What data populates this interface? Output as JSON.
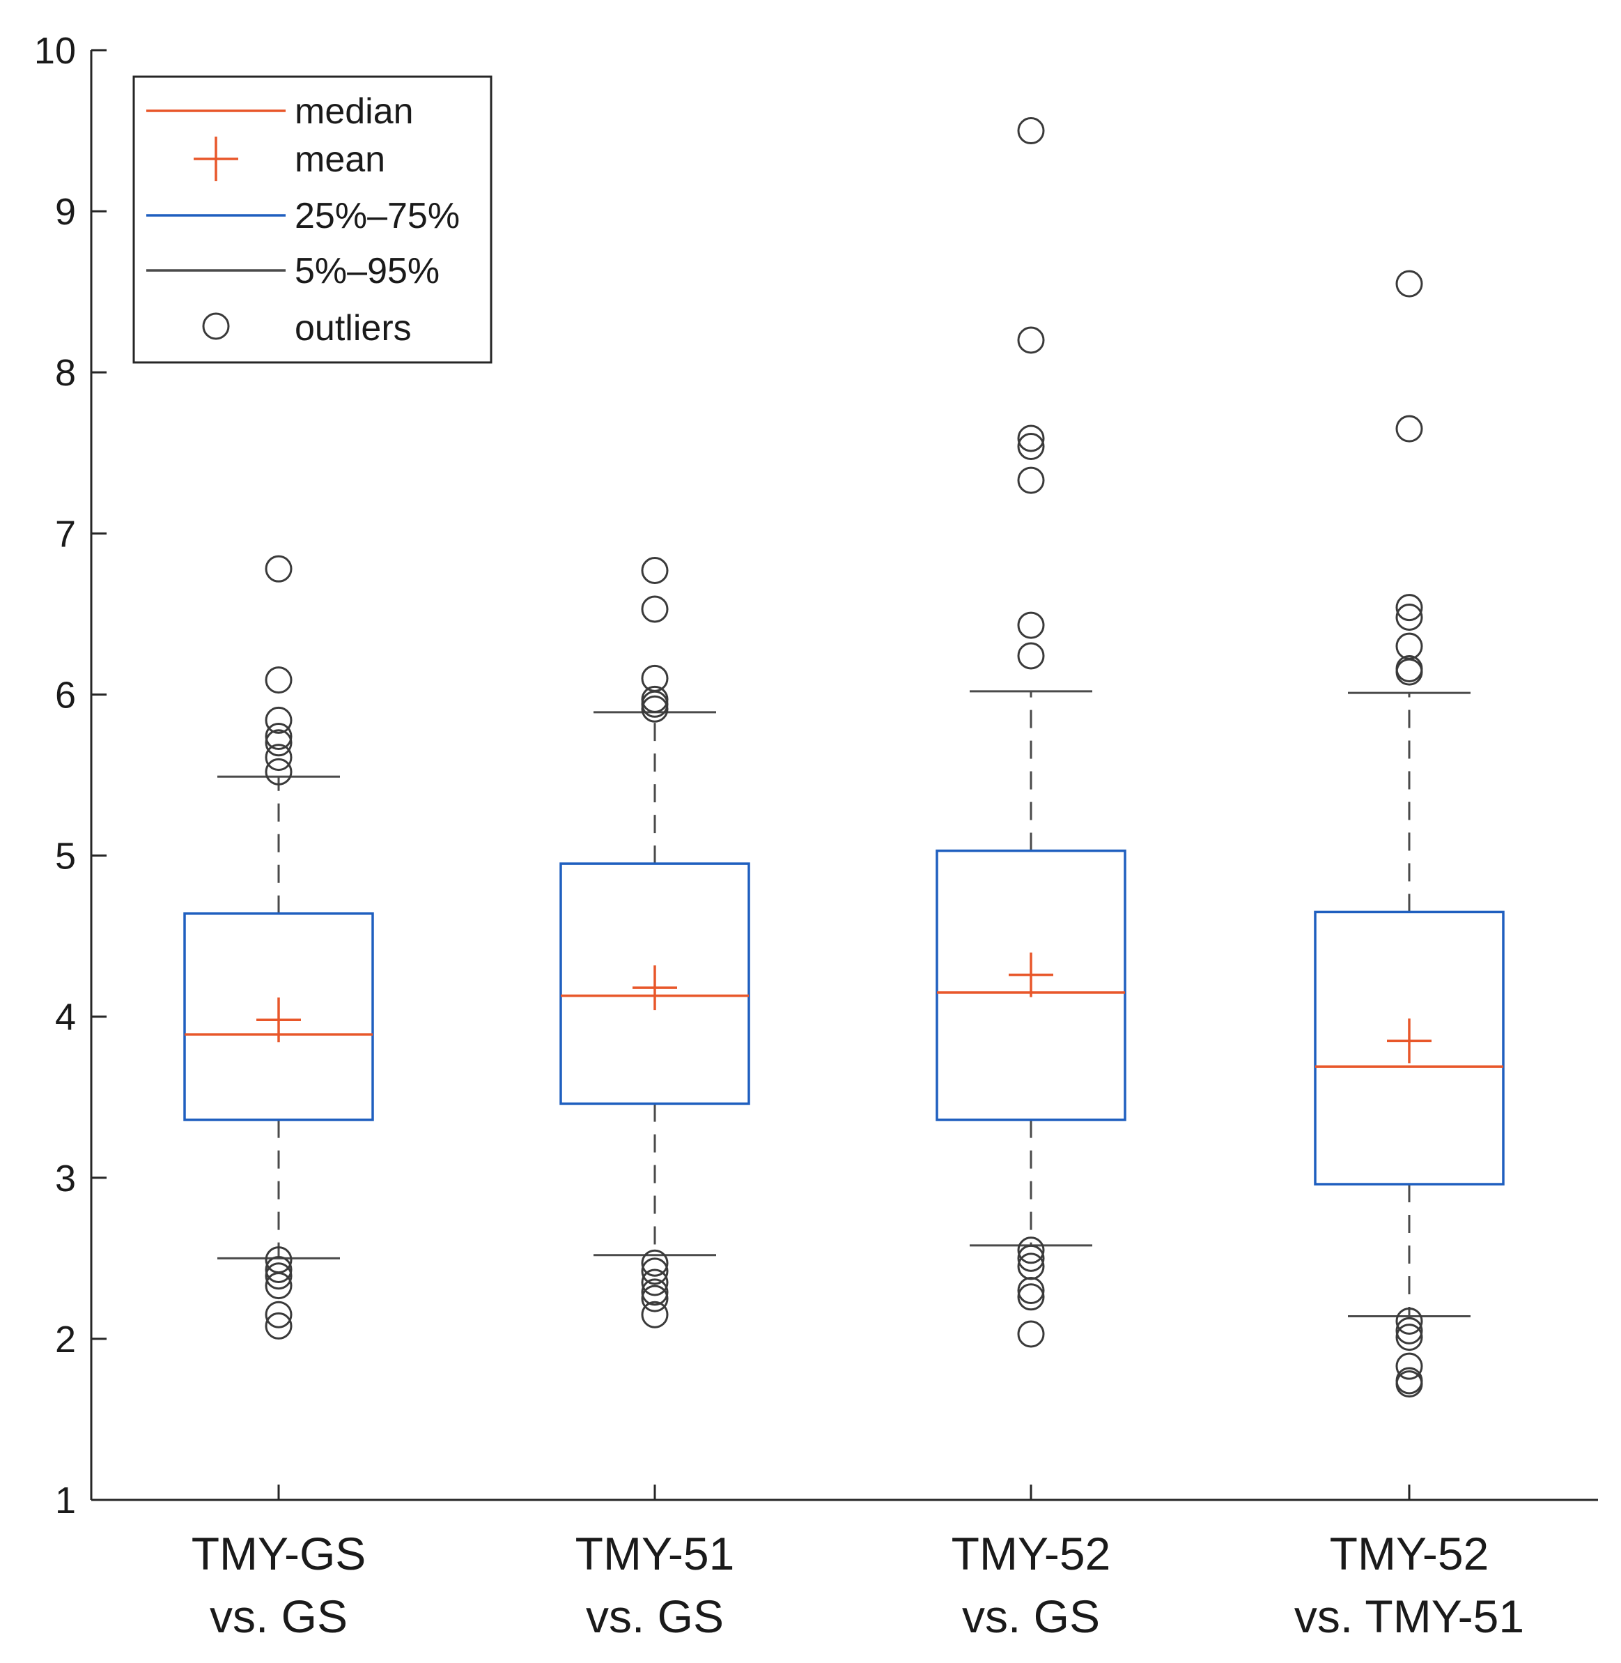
{
  "chart_data": {
    "type": "boxplot",
    "title": "",
    "xlabel": "",
    "ylabel": "",
    "ylim": [
      1,
      10
    ],
    "yticks": [
      1,
      2,
      3,
      4,
      5,
      6,
      7,
      8,
      9,
      10
    ],
    "categories": [
      {
        "line1": "TMY-GS",
        "line2": "vs. GS"
      },
      {
        "line1": "TMY-51",
        "line2": "vs. GS"
      },
      {
        "line1": "TMY-52",
        "line2": "vs. GS"
      },
      {
        "line1": "TMY-52",
        "line2": "vs. TMY-51"
      }
    ],
    "boxes": [
      {
        "q1": 3.36,
        "median": 3.89,
        "q3": 4.64,
        "mean": 3.98,
        "p5": 2.5,
        "p95": 5.49,
        "outliers": [
          6.78,
          6.09,
          5.84,
          5.74,
          5.7,
          5.61,
          5.52,
          2.49,
          2.43,
          2.39,
          2.33,
          2.15,
          2.08
        ]
      },
      {
        "q1": 3.46,
        "median": 4.13,
        "q3": 4.95,
        "mean": 4.18,
        "p5": 2.52,
        "p95": 5.89,
        "outliers": [
          6.77,
          6.53,
          6.1,
          5.97,
          5.94,
          5.91,
          2.47,
          2.42,
          2.35,
          2.29,
          2.25,
          2.15
        ]
      },
      {
        "q1": 3.36,
        "median": 4.15,
        "q3": 5.03,
        "mean": 4.26,
        "p5": 2.58,
        "p95": 6.02,
        "outliers": [
          9.5,
          8.2,
          7.59,
          7.54,
          7.33,
          6.43,
          6.24,
          2.55,
          2.5,
          2.45,
          2.3,
          2.26,
          2.03
        ]
      },
      {
        "q1": 2.96,
        "median": 3.69,
        "q3": 4.65,
        "mean": 3.85,
        "p5": 2.14,
        "p95": 6.01,
        "outliers": [
          8.55,
          7.65,
          6.54,
          6.48,
          6.3,
          6.16,
          6.14,
          2.11,
          2.05,
          2.01,
          1.83,
          1.74,
          1.72
        ]
      }
    ],
    "legend": {
      "position": "top-left",
      "entries": [
        {
          "label": "median",
          "marker": "line",
          "color": "#e8572a"
        },
        {
          "label": "mean",
          "marker": "plus",
          "color": "#e8572a"
        },
        {
          "label": "25%–75%",
          "marker": "line",
          "color": "#1f5fbf"
        },
        {
          "label": "5%–95%",
          "marker": "line",
          "color": "#4a4a4a"
        },
        {
          "label": "outliers",
          "marker": "circle",
          "color": "#3a3a3a"
        }
      ]
    },
    "colors": {
      "median": "#e8572a",
      "mean": "#e8572a",
      "box": "#1f5fbf",
      "whisker": "#4a4a4a",
      "outlier": "#3a3a3a",
      "axis": "#262626"
    }
  }
}
